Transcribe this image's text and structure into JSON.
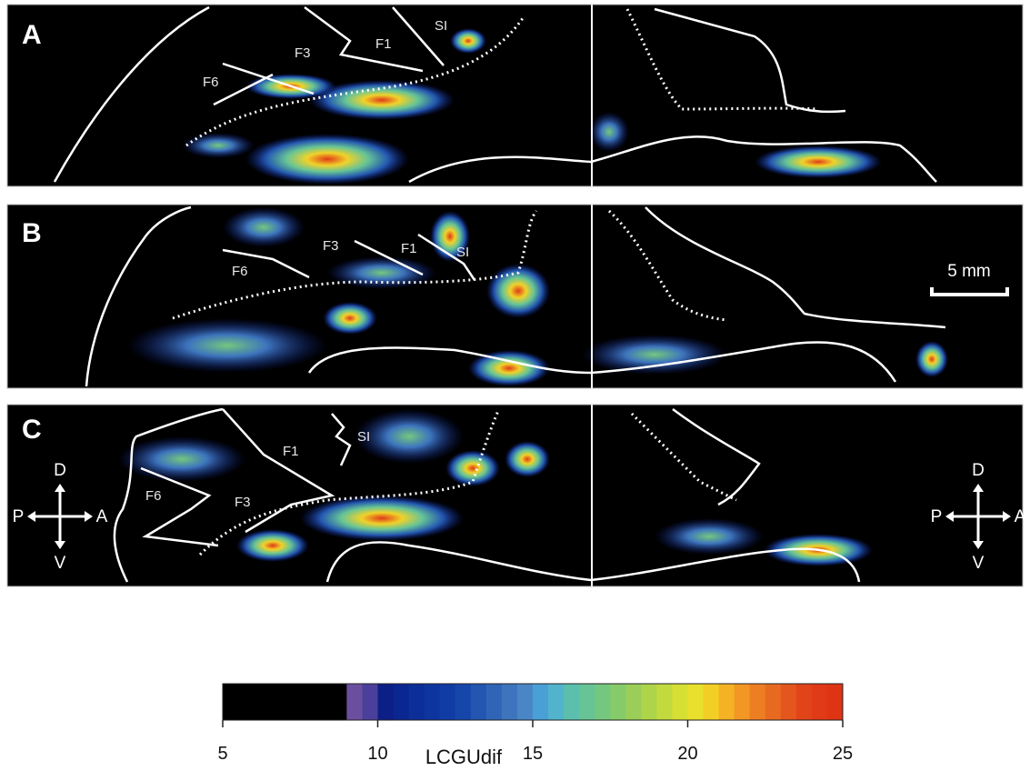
{
  "panels": [
    {
      "label": "A",
      "regions": [
        "F1",
        "F3",
        "F6",
        "SI"
      ]
    },
    {
      "label": "B",
      "regions": [
        "F1",
        "F3",
        "F6",
        "SI"
      ]
    },
    {
      "label": "C",
      "regions": [
        "F1",
        "F3",
        "F6",
        "SI"
      ]
    }
  ],
  "scale_bar": "5 mm",
  "orientation": {
    "dorsal": "D",
    "posterior": "P",
    "anterior": "A",
    "ventral": "V"
  },
  "colorbar": {
    "label": "LCGUdif",
    "lim": [
      5,
      25
    ],
    "ticks": [
      5,
      10,
      15,
      20,
      25
    ],
    "colors": [
      "#000000",
      "#000000",
      "#000000",
      "#000000",
      "#000000",
      "#000000",
      "#000000",
      "#000000",
      "#6b4f9e",
      "#4a3f9a",
      "#0c1f86",
      "#0a2690",
      "#0b2e98",
      "#0d359f",
      "#103ca6",
      "#1646aa",
      "#2356b0",
      "#3064b6",
      "#3d74bd",
      "#4a86c6",
      "#49a0d6",
      "#52b4cc",
      "#5cbfae",
      "#66c496",
      "#74c77e",
      "#86cb6a",
      "#9ace58",
      "#aed44a",
      "#c2da3e",
      "#d6df34",
      "#e8e02c",
      "#f3cf26",
      "#f5b224",
      "#f29624",
      "#ee7e22",
      "#e86a20",
      "#e4561e",
      "#e2441a",
      "#e03a16",
      "#de3414"
    ]
  }
}
